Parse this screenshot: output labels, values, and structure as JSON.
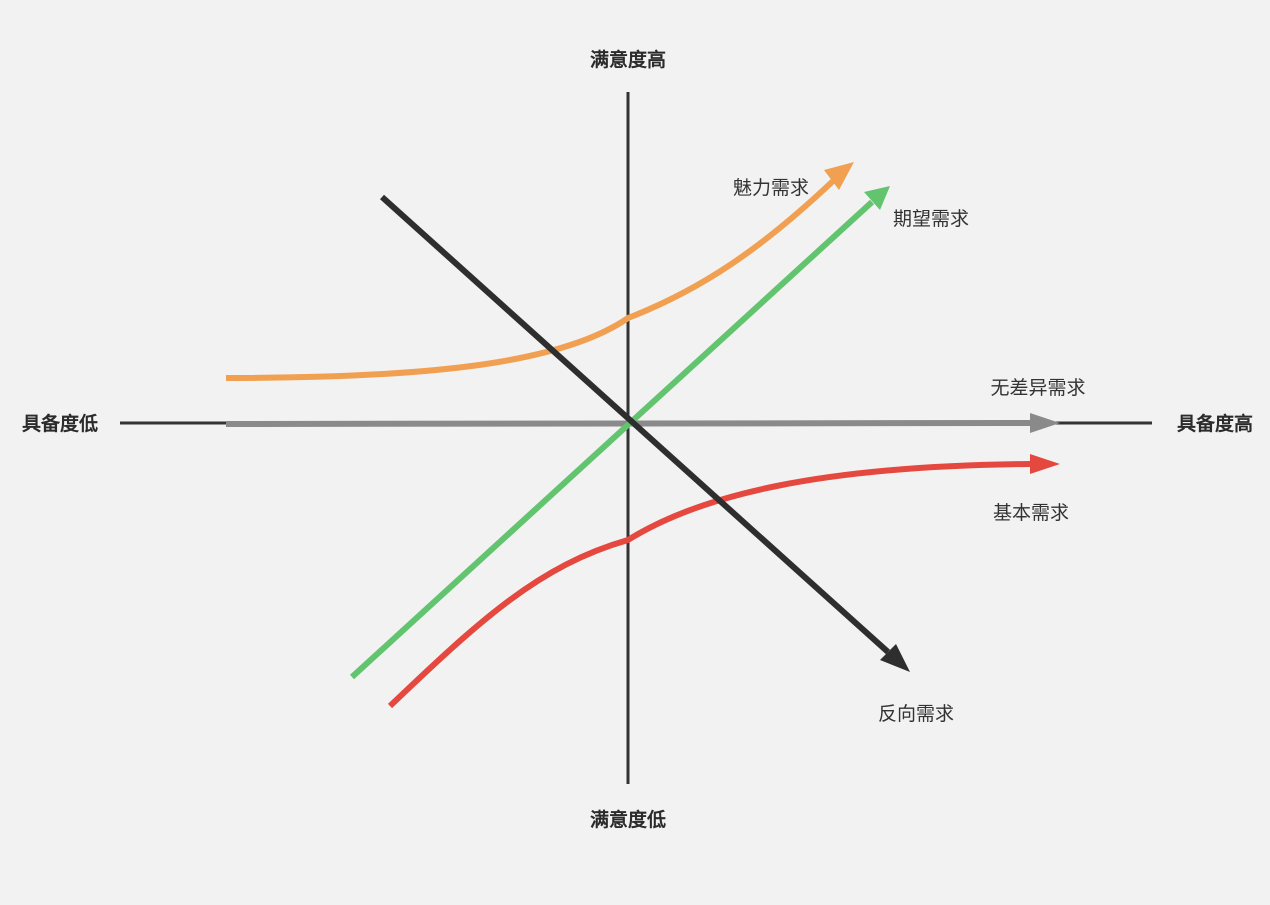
{
  "axes": {
    "x_low": "具备度低",
    "x_high": "具备度高",
    "y_high": "满意度高",
    "y_low": "满意度低"
  },
  "curves": {
    "attractive": {
      "label": "魅力需求",
      "color": "#f0a050"
    },
    "performance": {
      "label": "期望需求",
      "color": "#62c46e"
    },
    "indifferent": {
      "label": "无差异需求",
      "color": "#8a8a8a"
    },
    "must_be": {
      "label": "基本需求",
      "color": "#e5483e"
    },
    "reverse": {
      "label": "反向需求",
      "color": "#2e2e2e"
    }
  },
  "colors": {
    "background": "#f2f2f2",
    "axis": "#333333"
  }
}
